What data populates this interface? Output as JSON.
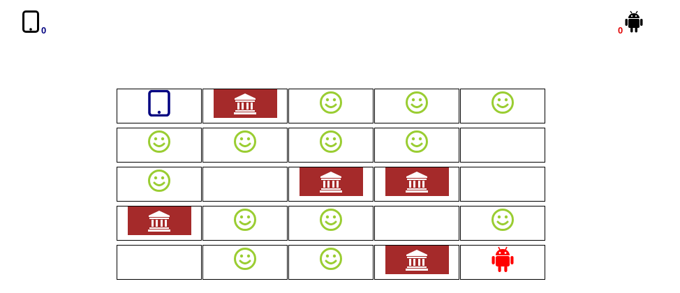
{
  "players": {
    "left": {
      "icon": "tablet-icon",
      "score": "0",
      "color": "#000080"
    },
    "right": {
      "icon": "android-icon",
      "score": "0",
      "color": "#e00000"
    }
  },
  "colors": {
    "bank_bg": "#a52a2a",
    "smiley": "#9acd32",
    "tablet_token": "#000080",
    "android_token": "#ff0000",
    "grid_border": "#000000"
  },
  "board": {
    "rows": 5,
    "cols": 5,
    "cells": [
      [
        "tablet",
        "bank",
        "smiley",
        "smiley",
        "smiley"
      ],
      [
        "smiley",
        "smiley",
        "smiley",
        "smiley",
        "empty"
      ],
      [
        "smiley",
        "empty",
        "bank",
        "bank",
        "empty"
      ],
      [
        "bank",
        "smiley",
        "smiley",
        "empty",
        "smiley"
      ],
      [
        "empty",
        "smiley",
        "smiley",
        "bank",
        "android"
      ]
    ]
  }
}
